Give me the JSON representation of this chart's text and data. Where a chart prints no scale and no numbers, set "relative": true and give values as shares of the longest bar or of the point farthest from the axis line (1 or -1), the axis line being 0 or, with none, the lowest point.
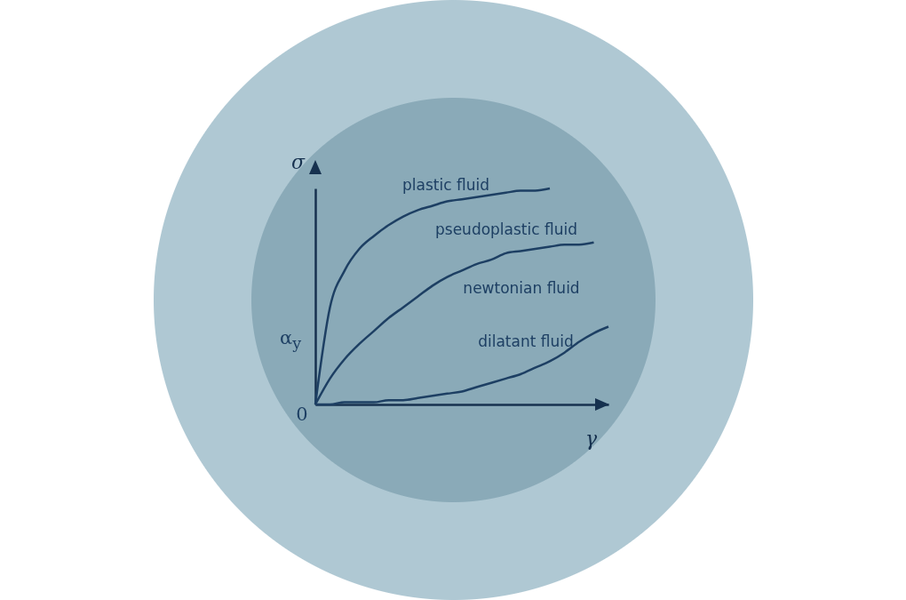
{
  "chart_data": {
    "type": "line",
    "relative": true,
    "xlabel": "γ",
    "ylabel": "σ",
    "grid": false,
    "marker": "none",
    "line_style": "solid",
    "categories": [
      null,
      null,
      null,
      null,
      null,
      null,
      null,
      null,
      null,
      null,
      null,
      null,
      null,
      null,
      null,
      null,
      null,
      null,
      null,
      null,
      null
    ],
    "series": [
      {
        "color": "#1d3f63",
        "values": [
          0,
          0.45,
          0.62,
          0.72,
          0.78,
          0.83,
          0.87,
          0.9,
          0.92,
          0.94,
          0.95,
          0.96,
          0.97,
          0.98,
          0.99,
          0.99,
          1,
          null,
          null,
          null,
          null
        ]
      },
      {
        "color": "#1d3f63",
        "values": [
          0,
          0.12,
          0.21,
          0.28,
          0.34,
          0.4,
          0.45,
          0.5,
          0.55,
          0.59,
          0.62,
          0.65,
          0.67,
          0.7,
          0.71,
          0.72,
          0.73,
          0.74,
          0.74,
          0.75,
          null
        ]
      },
      {
        "color": "#1d3f63",
        "values": [
          0,
          0,
          0.01,
          0.01,
          0.01,
          0.02,
          0.02,
          0.03,
          0.04,
          0.05,
          0.06,
          0.08,
          0.1,
          0.12,
          0.14,
          0.17,
          0.2,
          0.24,
          0.29,
          0.33,
          0.36
        ]
      }
    ],
    "annotations": [
      "plastic fluid",
      "pseudoplastic fluid",
      "newtonian fluid",
      "dilatant fluid",
      "α$_{y}$",
      "0"
    ]
  }
}
